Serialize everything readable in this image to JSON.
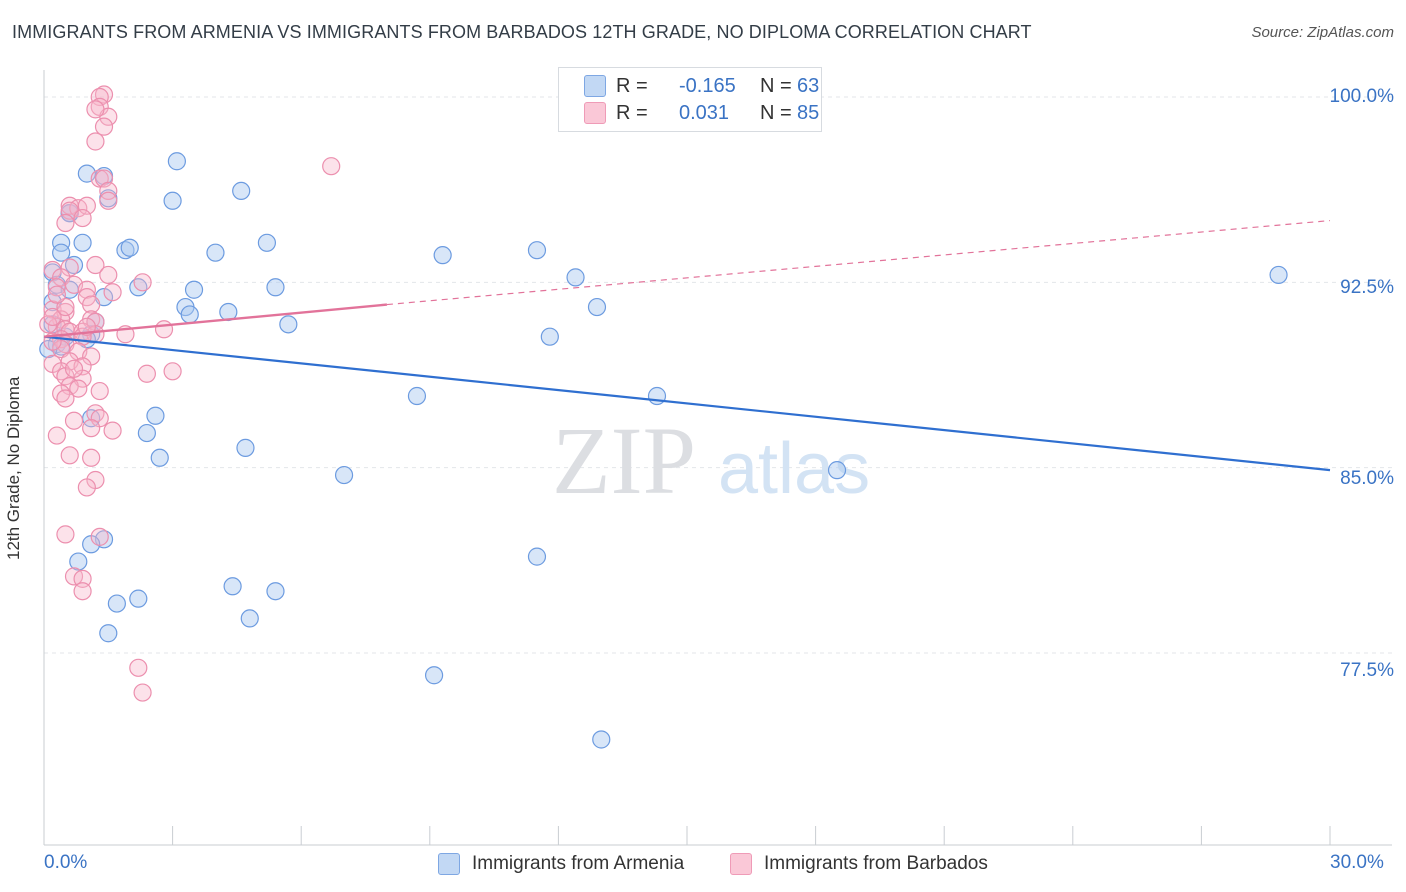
{
  "title": "IMMIGRANTS FROM ARMENIA VS IMMIGRANTS FROM BARBADOS 12TH GRADE, NO DIPLOMA CORRELATION CHART",
  "source": "Source: ZipAtlas.com",
  "watermark": {
    "zip": "ZIP",
    "atlas": "atlas"
  },
  "legend": {
    "rows": [
      {
        "r_label": "R =",
        "r_value": "-0.165",
        "n_label": "N =",
        "n_value": "63",
        "color": "#a9c8f0"
      },
      {
        "r_label": "R =",
        "r_value": "0.031",
        "n_label": "N =",
        "n_value": "85",
        "color": "#f7b6ca"
      }
    ]
  },
  "bottom_legend": {
    "armenia": "Immigrants from Armenia",
    "barbados": "Immigrants from Barbados"
  },
  "axis": {
    "x_min_label": "0.0%",
    "x_max_label": "30.0%",
    "y_labels": [
      "100.0%",
      "92.5%",
      "85.0%",
      "77.5%"
    ],
    "ylabel": "12th Grade, No Diploma"
  },
  "colors": {
    "armenia_fill": "#a9c8f0",
    "armenia_stroke": "#6c9be0",
    "armenia_line": "#2f6fd0",
    "barbados_fill": "#f7b6ca",
    "barbados_stroke": "#ec8fae",
    "barbados_line": "#e2739a",
    "grid": "#e3e6ea",
    "tick_text": "#3a73c4"
  },
  "chart_data": {
    "type": "scatter",
    "title": "IMMIGRANTS FROM ARMENIA VS IMMIGRANTS FROM BARBADOS 12TH GRADE, NO DIPLOMA CORRELATION CHART",
    "xlabel": "",
    "ylabel": "12th Grade, No Diploma",
    "xlim": [
      0,
      30
    ],
    "ylim": [
      70.5,
      101.3
    ],
    "yticks": [
      100.0,
      92.5,
      85.0,
      77.5
    ],
    "grid": true,
    "series": [
      {
        "name": "Immigrants from Armenia",
        "r": -0.165,
        "n": 63,
        "trend": {
          "x0": 0.0,
          "y0": 90.3,
          "x1": 30.0,
          "y1": 84.9
        },
        "points": [
          [
            1.0,
            96.9
          ],
          [
            1.4,
            96.8
          ],
          [
            1.5,
            95.9
          ],
          [
            0.6,
            95.3
          ],
          [
            0.6,
            95.3
          ],
          [
            0.4,
            94.1
          ],
          [
            0.4,
            93.7
          ],
          [
            0.9,
            94.1
          ],
          [
            0.7,
            93.2
          ],
          [
            0.2,
            92.9
          ],
          [
            1.9,
            93.8
          ],
          [
            2.0,
            93.9
          ],
          [
            0.3,
            92.4
          ],
          [
            0.6,
            92.2
          ],
          [
            0.2,
            91.7
          ],
          [
            1.4,
            91.9
          ],
          [
            2.2,
            92.3
          ],
          [
            3.1,
            97.4
          ],
          [
            3.0,
            95.8
          ],
          [
            4.6,
            96.2
          ],
          [
            5.2,
            94.1
          ],
          [
            4.0,
            93.7
          ],
          [
            3.5,
            92.2
          ],
          [
            3.3,
            91.5
          ],
          [
            3.4,
            91.2
          ],
          [
            4.3,
            91.3
          ],
          [
            5.4,
            92.3
          ],
          [
            5.7,
            90.8
          ],
          [
            0.2,
            90.8
          ],
          [
            0.5,
            90.3
          ],
          [
            1.2,
            90.9
          ],
          [
            1.1,
            90.4
          ],
          [
            1.0,
            90.2
          ],
          [
            0.3,
            90.0
          ],
          [
            0.4,
            89.9
          ],
          [
            0.1,
            89.8
          ],
          [
            9.3,
            93.6
          ],
          [
            11.5,
            93.8
          ],
          [
            12.4,
            92.7
          ],
          [
            12.9,
            91.5
          ],
          [
            11.8,
            90.3
          ],
          [
            8.7,
            87.9
          ],
          [
            14.3,
            87.9
          ],
          [
            1.1,
            87.0
          ],
          [
            2.6,
            87.1
          ],
          [
            2.4,
            86.4
          ],
          [
            4.7,
            85.8
          ],
          [
            2.7,
            85.4
          ],
          [
            7.0,
            84.7
          ],
          [
            18.5,
            84.9
          ],
          [
            28.8,
            92.8
          ],
          [
            1.4,
            82.1
          ],
          [
            1.1,
            81.9
          ],
          [
            0.8,
            81.2
          ],
          [
            11.5,
            81.4
          ],
          [
            4.4,
            80.2
          ],
          [
            5.4,
            80.0
          ],
          [
            2.2,
            79.7
          ],
          [
            1.7,
            79.5
          ],
          [
            4.8,
            78.9
          ],
          [
            1.5,
            78.3
          ],
          [
            9.1,
            76.6
          ],
          [
            13.0,
            74.0
          ]
        ]
      },
      {
        "name": "Immigrants from Barbados",
        "r": 0.031,
        "n": 85,
        "trend": {
          "x0": 0.0,
          "y0": 90.3,
          "x1": 8.0,
          "y1": 91.6,
          "dashed_to": {
            "x": 30.0,
            "y": 95.0
          }
        },
        "points": [
          [
            1.4,
            100.1
          ],
          [
            1.3,
            100.0
          ],
          [
            1.3,
            99.6
          ],
          [
            1.5,
            99.2
          ],
          [
            1.2,
            99.5
          ],
          [
            1.4,
            98.8
          ],
          [
            1.2,
            98.2
          ],
          [
            6.7,
            97.2
          ],
          [
            1.3,
            96.7
          ],
          [
            1.4,
            96.7
          ],
          [
            1.5,
            96.2
          ],
          [
            1.5,
            95.8
          ],
          [
            0.6,
            95.6
          ],
          [
            0.8,
            95.5
          ],
          [
            1.0,
            95.6
          ],
          [
            0.6,
            95.4
          ],
          [
            0.9,
            95.1
          ],
          [
            0.5,
            94.9
          ],
          [
            0.2,
            93.0
          ],
          [
            0.6,
            93.1
          ],
          [
            1.2,
            93.2
          ],
          [
            0.4,
            92.7
          ],
          [
            1.5,
            92.8
          ],
          [
            2.3,
            92.5
          ],
          [
            0.3,
            92.3
          ],
          [
            0.7,
            92.4
          ],
          [
            1.0,
            92.2
          ],
          [
            1.0,
            91.9
          ],
          [
            1.1,
            91.6
          ],
          [
            0.2,
            91.4
          ],
          [
            0.5,
            91.3
          ],
          [
            1.1,
            91.0
          ],
          [
            1.2,
            90.9
          ],
          [
            0.4,
            91.0
          ],
          [
            0.3,
            90.7
          ],
          [
            0.5,
            90.6
          ],
          [
            0.6,
            90.5
          ],
          [
            0.9,
            90.5
          ],
          [
            1.2,
            90.4
          ],
          [
            0.4,
            90.2
          ],
          [
            0.9,
            90.3
          ],
          [
            1.9,
            90.4
          ],
          [
            2.8,
            90.6
          ],
          [
            0.5,
            90.0
          ],
          [
            0.4,
            89.8
          ],
          [
            0.8,
            89.7
          ],
          [
            1.1,
            89.5
          ],
          [
            0.2,
            89.2
          ],
          [
            0.6,
            89.3
          ],
          [
            0.9,
            89.1
          ],
          [
            0.4,
            88.9
          ],
          [
            0.5,
            88.7
          ],
          [
            0.9,
            88.6
          ],
          [
            0.6,
            88.3
          ],
          [
            0.8,
            88.2
          ],
          [
            3.0,
            88.9
          ],
          [
            2.4,
            88.8
          ],
          [
            1.3,
            88.1
          ],
          [
            0.4,
            88.0
          ],
          [
            0.5,
            87.8
          ],
          [
            1.2,
            87.2
          ],
          [
            1.3,
            87.0
          ],
          [
            0.7,
            86.9
          ],
          [
            1.1,
            86.6
          ],
          [
            1.6,
            86.5
          ],
          [
            0.3,
            86.3
          ],
          [
            0.6,
            85.5
          ],
          [
            1.1,
            85.4
          ],
          [
            1.2,
            84.5
          ],
          [
            1.0,
            84.2
          ],
          [
            0.5,
            82.3
          ],
          [
            1.3,
            82.2
          ],
          [
            0.7,
            80.6
          ],
          [
            0.9,
            80.5
          ],
          [
            0.9,
            80.0
          ],
          [
            2.2,
            76.9
          ],
          [
            2.3,
            75.9
          ],
          [
            0.1,
            90.8
          ],
          [
            0.2,
            90.1
          ],
          [
            0.7,
            89.0
          ],
          [
            0.2,
            91.1
          ],
          [
            0.5,
            91.5
          ],
          [
            1.0,
            90.7
          ],
          [
            0.3,
            92.0
          ],
          [
            1.6,
            92.1
          ]
        ]
      }
    ]
  }
}
